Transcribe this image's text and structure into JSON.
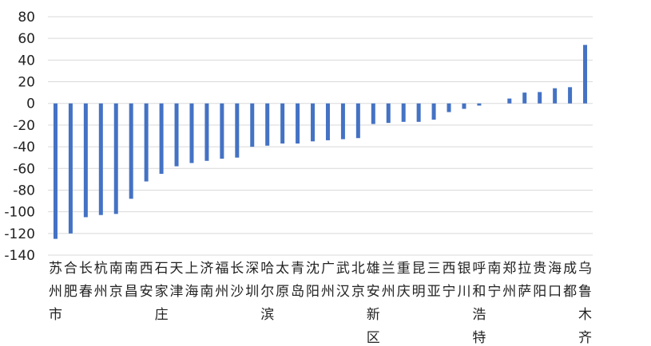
{
  "chart_data": {
    "type": "bar",
    "title": "",
    "xlabel": "",
    "ylabel": "",
    "ylim": [
      -140,
      80
    ],
    "yticks": [
      80,
      60,
      40,
      20,
      0,
      -20,
      -40,
      -60,
      -80,
      -100,
      -120,
      -140
    ],
    "grid": true,
    "legend": "none",
    "bar_color": "#4472C4",
    "grid_color": "#D9D9D9",
    "categories": [
      "苏州市",
      "合肥",
      "长春",
      "杭州",
      "南京",
      "南昌",
      "西安",
      "石家庄",
      "天津",
      "上海",
      "济南",
      "福州",
      "长沙",
      "深圳",
      "哈尔滨",
      "太原",
      "青岛",
      "沈阳",
      "广州",
      "武汉",
      "北京",
      "雄安新区",
      "兰州",
      "重庆",
      "昆明",
      "三亚",
      "西宁",
      "银川",
      "呼和浩特",
      "南宁",
      "郑州",
      "拉萨",
      "贵阳",
      "海口",
      "成都",
      "乌鲁木齐"
    ],
    "values": [
      -125,
      -120,
      -105,
      -103,
      -102,
      -88,
      -72,
      -65,
      -58,
      -55,
      -53,
      -51,
      -50,
      -40,
      -39,
      -37,
      -37,
      -35,
      -34,
      -33,
      -32,
      -19,
      -18,
      -17,
      -17,
      -15,
      -8,
      -5,
      -2,
      0,
      4.5,
      10,
      10.5,
      14,
      15,
      54
    ]
  }
}
